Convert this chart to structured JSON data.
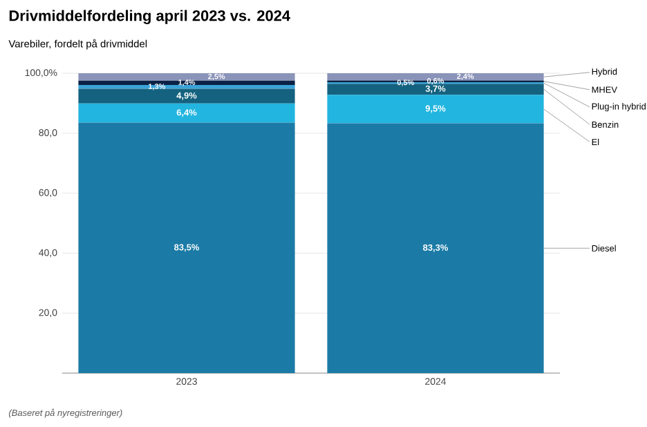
{
  "chart_data": {
    "type": "bar",
    "stacked": true,
    "title": "Drivmiddelfordeling april 2023 vs. 2024",
    "subtitle": "Varebiler, fordelt på drivmiddel",
    "categories": [
      "2023",
      "2024"
    ],
    "series": [
      {
        "name": "Diesel",
        "color": "#1b7ba6",
        "values": [
          83.5,
          83.3
        ],
        "value_labels": [
          "83,5%",
          "83,3%"
        ]
      },
      {
        "name": "El",
        "color": "#22b5e0",
        "values": [
          6.4,
          9.5
        ],
        "value_labels": [
          "6,4%",
          "9,5%"
        ]
      },
      {
        "name": "Benzin",
        "color": "#14627f",
        "values": [
          4.9,
          3.7
        ],
        "value_labels": [
          "4,9%",
          "3,7%"
        ]
      },
      {
        "name": "Plug-in hybrid",
        "color": "#3aa3d8",
        "values": [
          1.3,
          0.5
        ],
        "value_labels": [
          "1,3%",
          "0,5%"
        ]
      },
      {
        "name": "MHEV",
        "color": "#0b2145",
        "values": [
          1.4,
          0.6
        ],
        "value_labels": [
          "1,4%",
          "0,6%"
        ]
      },
      {
        "name": "Hybrid",
        "color": "#8a93b8",
        "values": [
          2.5,
          2.4
        ],
        "value_labels": [
          "2,5%",
          "2,4%"
        ]
      }
    ],
    "ylim": [
      0,
      100
    ],
    "yticks": [
      {
        "value": 20,
        "label": "20,0"
      },
      {
        "value": 40,
        "label": "40,0"
      },
      {
        "value": 60,
        "label": "60,0"
      },
      {
        "value": 80,
        "label": "80,0"
      },
      {
        "value": 100,
        "label": "100,0%"
      }
    ],
    "grid": "y",
    "legend": false,
    "annotations": [
      "(Baseret på nyregistreringer)"
    ]
  }
}
